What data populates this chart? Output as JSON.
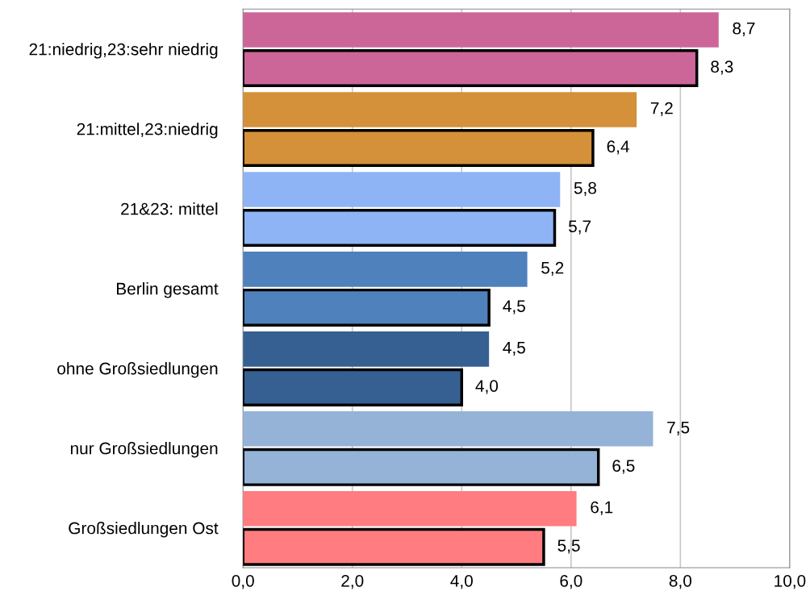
{
  "chart_data": {
    "type": "bar",
    "orientation": "horizontal",
    "categories": [
      "21:niedrig,23:sehr niedrig",
      "21:mittel,23:niedrig",
      "21&23: mittel",
      "Berlin gesamt",
      "ohne Großsiedlungen",
      "nur Großsiedlungen",
      "Großsiedlungen Ost"
    ],
    "series": [
      {
        "values": [
          8.7,
          7.2,
          5.8,
          5.2,
          4.5,
          7.5,
          6.1
        ],
        "value_labels": [
          "8,7",
          "7,2",
          "5,8",
          "5,2",
          "4,5",
          "7,5",
          "6,1"
        ],
        "colors": [
          "#cc6699",
          "#d4913a",
          "#8fb4f5",
          "#4f81bd",
          "#366092",
          "#95b3d7",
          "#ff7c80"
        ]
      },
      {
        "values": [
          8.3,
          6.4,
          5.7,
          4.5,
          4.0,
          6.5,
          5.5
        ],
        "value_labels": [
          "8,3",
          "6,4",
          "5,7",
          "4,5",
          "4,0",
          "6,5",
          "5,5"
        ],
        "colors": [
          "#cc6699",
          "#d4913a",
          "#8fb4f5",
          "#4f81bd",
          "#366092",
          "#95b3d7",
          "#ff7c80"
        ]
      }
    ],
    "xlim": [
      0,
      10
    ],
    "xticks": [
      {
        "value": 0,
        "label": "0,0"
      },
      {
        "value": 2,
        "label": "2,0"
      },
      {
        "value": 4,
        "label": "4,0"
      },
      {
        "value": 6,
        "label": "6,0"
      },
      {
        "value": 8,
        "label": "8,0"
      },
      {
        "value": 10,
        "label": "10,0"
      }
    ],
    "grid": "x",
    "legend": false
  }
}
